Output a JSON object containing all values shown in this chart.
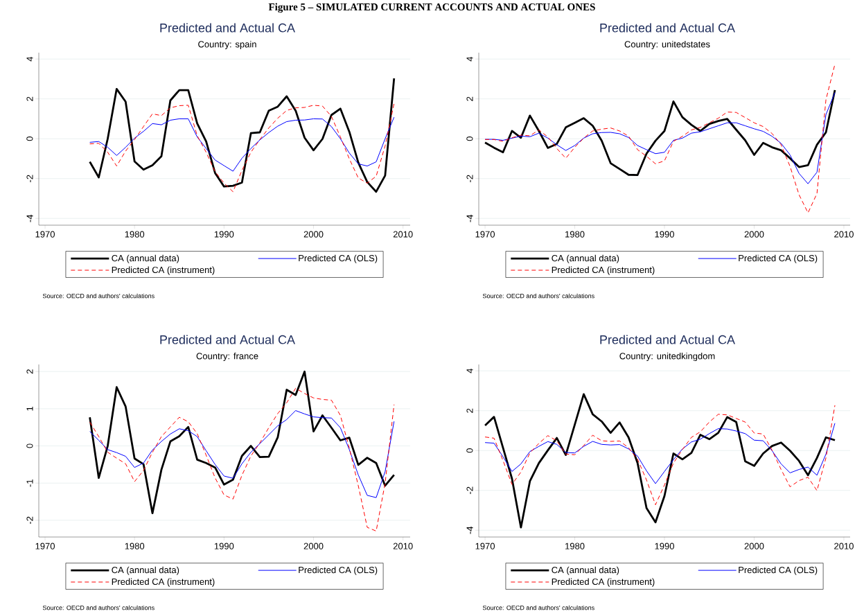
{
  "chart_data": [
    {
      "type": "line",
      "title": "Predicted and Actual CA",
      "subtitle": "Country: spain",
      "annotations": [
        "Figure 5 – SIMULATED CURRENT ACCOUNTS AND ACTUAL ONES",
        "Source: OECD and authors' calculations"
      ],
      "xlim": [
        1969.3,
        2010.8
      ],
      "ylim": [
        -4.34,
        4.32
      ],
      "xticks": [
        1970,
        1980,
        1990,
        2000,
        2010
      ],
      "yticks": [
        -4,
        -2,
        0,
        2,
        4
      ],
      "grid": "y",
      "legend": "bottom",
      "x": [
        1975,
        1976,
        1977,
        1978,
        1979,
        1980,
        1981,
        1982,
        1983,
        1984,
        1985,
        1986,
        1987,
        1988,
        1989,
        1990,
        1991,
        1992,
        1993,
        1994,
        1995,
        1996,
        1997,
        1998,
        1999,
        2000,
        2001,
        2002,
        2003,
        2004,
        2005,
        2006,
        2007,
        2008,
        2009
      ],
      "series": [
        {
          "name": "CA (annual data)",
          "color": "#000000",
          "line_style": "solid",
          "values": [
            -1.16,
            -1.94,
            0.0,
            2.5,
            1.86,
            -1.14,
            -1.55,
            -1.33,
            -0.88,
            1.92,
            2.44,
            2.44,
            0.77,
            -0.14,
            -1.72,
            -2.4,
            -2.36,
            -2.2,
            0.28,
            0.32,
            1.41,
            1.61,
            2.13,
            1.41,
            0.05,
            -0.58,
            -0.01,
            1.19,
            1.51,
            0.35,
            -1.2,
            -2.17,
            -2.66,
            -1.85,
            3.03
          ]
        },
        {
          "name": "Predicted CA (OLS)",
          "color": "#0000ff",
          "line_style": "solid",
          "values": [
            -0.18,
            -0.14,
            -0.43,
            -0.84,
            -0.43,
            0.03,
            0.37,
            0.76,
            0.7,
            0.93,
            1.0,
            1.0,
            0.09,
            -0.49,
            -1.07,
            -1.35,
            -1.63,
            -0.98,
            -0.49,
            -0.06,
            0.31,
            0.63,
            0.86,
            0.93,
            0.94,
            1.0,
            0.99,
            0.61,
            0.0,
            -0.72,
            -1.26,
            -1.37,
            -1.16,
            0.0,
            1.08
          ]
        },
        {
          "name": "Predicted CA (instrument)",
          "color": "#ff0000",
          "line_style": "dashed",
          "values": [
            -0.26,
            -0.23,
            -0.68,
            -1.37,
            -0.62,
            -0.04,
            0.61,
            1.25,
            1.16,
            1.55,
            1.66,
            1.68,
            0.15,
            -0.68,
            -1.65,
            -2.23,
            -2.66,
            -1.59,
            -0.68,
            -0.04,
            0.54,
            1.03,
            1.42,
            1.55,
            1.57,
            1.68,
            1.64,
            1.12,
            0.09,
            -1.01,
            -1.97,
            -2.23,
            -1.88,
            -0.36,
            1.77
          ]
        }
      ]
    },
    {
      "type": "line",
      "title": "Predicted and Actual CA",
      "subtitle": "Country: unitedstates",
      "annotations": [
        "Source: OECD and authors' calculations"
      ],
      "xlim": [
        1969.3,
        2010.7
      ],
      "ylim": [
        -4.34,
        4.32
      ],
      "xticks": [
        1970,
        1980,
        1990,
        2000,
        2010
      ],
      "yticks": [
        -4,
        -2,
        0,
        2,
        4
      ],
      "grid": "y",
      "legend": "bottom",
      "x": [
        1970,
        1971,
        1972,
        1973,
        1974,
        1975,
        1976,
        1977,
        1978,
        1979,
        1980,
        1981,
        1982,
        1983,
        1984,
        1985,
        1986,
        1987,
        1988,
        1989,
        1990,
        1991,
        1992,
        1993,
        1994,
        1995,
        1996,
        1997,
        1998,
        1999,
        2000,
        2001,
        2002,
        2003,
        2004,
        2005,
        2006,
        2007,
        2008,
        2009
      ],
      "series": [
        {
          "name": "CA (annual data)",
          "color": "#000000",
          "line_style": "solid",
          "values": [
            -0.19,
            -0.45,
            -0.68,
            0.39,
            0.05,
            1.16,
            0.39,
            -0.46,
            -0.26,
            0.57,
            0.8,
            1.03,
            0.65,
            -0.1,
            -1.23,
            -1.52,
            -1.81,
            -1.82,
            -0.75,
            -0.1,
            0.39,
            1.87,
            1.08,
            0.7,
            0.39,
            0.74,
            0.89,
            0.99,
            0.45,
            -0.08,
            -0.81,
            -0.21,
            -0.43,
            -0.58,
            -0.98,
            -1.42,
            -1.33,
            -0.3,
            0.32,
            2.44
          ]
        },
        {
          "name": "Predicted CA (OLS)",
          "color": "#0000ff",
          "line_style": "solid",
          "values": [
            -0.03,
            -0.03,
            -0.08,
            0.03,
            0.13,
            0.1,
            0.28,
            0.03,
            -0.3,
            -0.59,
            -0.34,
            0.03,
            0.25,
            0.31,
            0.32,
            0.25,
            0.06,
            -0.34,
            -0.55,
            -0.75,
            -0.68,
            -0.08,
            0.03,
            0.28,
            0.35,
            0.5,
            0.65,
            0.8,
            0.8,
            0.65,
            0.5,
            0.37,
            0.12,
            -0.23,
            -0.81,
            -1.74,
            -2.26,
            -1.68,
            1.21,
            2.32
          ]
        },
        {
          "name": "Predicted CA (instrument)",
          "color": "#ff0000",
          "line_style": "dashed",
          "values": [
            -0.04,
            -0.04,
            -0.13,
            0.05,
            0.18,
            0.15,
            0.44,
            0.09,
            -0.49,
            -0.98,
            -0.43,
            0.03,
            0.39,
            0.48,
            0.54,
            0.39,
            0.13,
            -0.55,
            -0.88,
            -1.26,
            -1.11,
            -0.13,
            0.12,
            0.44,
            0.57,
            0.8,
            1.03,
            1.34,
            1.32,
            1.06,
            0.8,
            0.61,
            0.26,
            -0.3,
            -1.39,
            -2.81,
            -3.72,
            -2.75,
            1.96,
            3.74
          ]
        }
      ]
    },
    {
      "type": "line",
      "title": "Predicted and Actual CA",
      "subtitle": "Country: france",
      "annotations": [
        "Source: OECD and authors' calculations"
      ],
      "xlim": [
        1969.3,
        2010.8
      ],
      "ylim": [
        -2.45,
        2.19
      ],
      "xticks": [
        1970,
        1980,
        1990,
        2000,
        2010
      ],
      "yticks": [
        -2,
        -1,
        0,
        1,
        2
      ],
      "grid": "y",
      "legend": "bottom",
      "x": [
        1975,
        1976,
        1977,
        1978,
        1979,
        1980,
        1981,
        1982,
        1983,
        1984,
        1985,
        1986,
        1987,
        1988,
        1989,
        1990,
        1991,
        1992,
        1993,
        1994,
        1995,
        1996,
        1997,
        1998,
        1999,
        2000,
        2001,
        2002,
        2003,
        2004,
        2005,
        2006,
        2007,
        2008,
        2009
      ],
      "series": [
        {
          "name": "CA (annual data)",
          "color": "#000000",
          "line_style": "solid",
          "values": [
            0.77,
            -0.86,
            0.0,
            1.58,
            1.06,
            -0.34,
            -0.49,
            -1.81,
            -0.64,
            0.12,
            0.26,
            0.51,
            -0.37,
            -0.46,
            -0.58,
            -1.04,
            -0.91,
            -0.27,
            0.0,
            -0.3,
            -0.29,
            0.23,
            1.51,
            1.37,
            2.0,
            0.39,
            0.82,
            0.49,
            0.15,
            0.22,
            -0.51,
            -0.32,
            -0.46,
            -1.07,
            -0.78
          ]
        },
        {
          "name": "Predicted CA (OLS)",
          "color": "#0000ff",
          "line_style": "solid",
          "values": [
            0.39,
            0.15,
            -0.1,
            -0.18,
            -0.28,
            -0.58,
            -0.46,
            -0.11,
            0.12,
            0.32,
            0.46,
            0.41,
            0.25,
            -0.13,
            -0.5,
            -0.81,
            -0.87,
            -0.48,
            -0.17,
            0.06,
            0.3,
            0.54,
            0.71,
            0.95,
            0.86,
            0.78,
            0.76,
            0.75,
            0.49,
            -0.1,
            -0.78,
            -1.33,
            -1.39,
            -0.69,
            0.66
          ]
        },
        {
          "name": "Predicted CA (instrument)",
          "color": "#ff0000",
          "line_style": "dashed",
          "values": [
            0.64,
            0.25,
            -0.17,
            -0.33,
            -0.48,
            -0.96,
            -0.66,
            -0.17,
            0.25,
            0.51,
            0.77,
            0.65,
            0.33,
            -0.25,
            -0.86,
            -1.32,
            -1.43,
            -0.79,
            -0.27,
            0.08,
            0.49,
            0.87,
            1.16,
            1.55,
            1.41,
            1.29,
            1.25,
            1.23,
            0.82,
            -0.06,
            -1.07,
            -2.19,
            -2.29,
            -1.0,
            1.11
          ]
        }
      ]
    },
    {
      "type": "line",
      "title": "Predicted and Actual CA",
      "subtitle": "Country: unitedkingdom",
      "annotations": [
        "Source: OECD and authors' calculations"
      ],
      "xlim": [
        1969.3,
        2010.7
      ],
      "ylim": [
        -4.34,
        4.32
      ],
      "xticks": [
        1970,
        1980,
        1990,
        2000,
        2010
      ],
      "yticks": [
        -4,
        -2,
        0,
        2,
        4
      ],
      "grid": "y",
      "legend": "bottom",
      "x": [
        1970,
        1971,
        1972,
        1973,
        1974,
        1975,
        1976,
        1977,
        1978,
        1979,
        1980,
        1981,
        1982,
        1983,
        1984,
        1985,
        1986,
        1987,
        1988,
        1989,
        1990,
        1991,
        1992,
        1993,
        1994,
        1995,
        1996,
        1997,
        1998,
        1999,
        2000,
        2001,
        2002,
        2003,
        2004,
        2005,
        2006,
        2007,
        2008,
        2009
      ],
      "series": [
        {
          "name": "CA (annual data)",
          "color": "#000000",
          "line_style": "solid",
          "values": [
            1.26,
            1.69,
            0.14,
            -1.41,
            -3.86,
            -1.54,
            -0.63,
            0.01,
            0.63,
            -0.22,
            1.3,
            2.83,
            1.82,
            1.46,
            0.89,
            1.41,
            0.66,
            -0.63,
            -2.89,
            -3.6,
            -2.28,
            -0.15,
            -0.44,
            -0.12,
            0.79,
            0.57,
            0.89,
            1.68,
            1.43,
            -0.54,
            -0.77,
            -0.15,
            0.23,
            0.4,
            -0.01,
            -0.52,
            -1.24,
            -0.37,
            0.66,
            0.52
          ]
        },
        {
          "name": "Predicted CA (OLS)",
          "color": "#0000ff",
          "line_style": "solid",
          "values": [
            0.4,
            0.37,
            -0.31,
            -1.05,
            -0.67,
            -0.05,
            0.21,
            0.45,
            0.31,
            -0.1,
            -0.12,
            0.21,
            0.46,
            0.31,
            0.28,
            0.3,
            0.08,
            -0.28,
            -1.02,
            -1.66,
            -1.05,
            -0.46,
            0.08,
            0.43,
            0.57,
            0.85,
            1.1,
            1.08,
            0.98,
            0.85,
            0.52,
            0.49,
            -0.01,
            -0.67,
            -1.12,
            -0.95,
            -0.83,
            -1.24,
            -0.18,
            1.37
          ]
        },
        {
          "name": "Predicted CA (instrument)",
          "color": "#ff0000",
          "line_style": "dashed",
          "values": [
            0.68,
            0.62,
            -0.5,
            -1.7,
            -1.08,
            -0.12,
            0.36,
            0.75,
            0.49,
            -0.18,
            -0.21,
            0.25,
            0.77,
            0.49,
            0.46,
            0.48,
            0.14,
            -0.44,
            -1.48,
            -2.72,
            -1.73,
            -0.63,
            0.05,
            0.66,
            0.94,
            1.43,
            1.82,
            1.79,
            1.61,
            1.43,
            0.88,
            0.83,
            0.01,
            -0.95,
            -1.82,
            -1.51,
            -1.34,
            -2.01,
            -0.37,
            2.27
          ]
        }
      ]
    }
  ]
}
